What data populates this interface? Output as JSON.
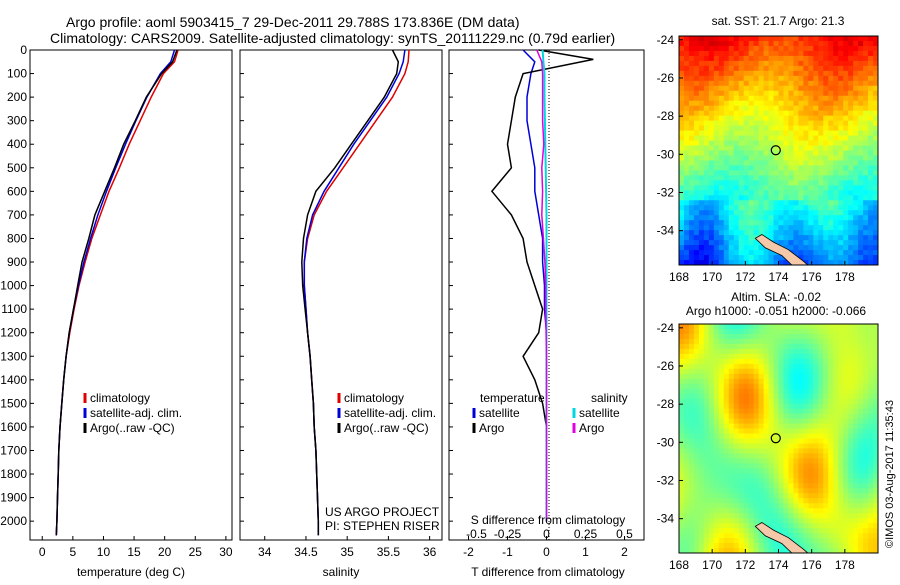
{
  "header": {
    "line1": "Argo profile: aoml 5903415_7 29-Dec-2011 29.788S 173.836E (DM data)",
    "line2": "Climatology: CARS2009. Satellite-adjusted climatology: synTS_20111229.nc (0.79d earlier)"
  },
  "watermark": "©IMOS 03-Aug-2017 11:35:43",
  "colors": {
    "clim": "#e00000",
    "sat": "#0000d8",
    "argo": "#000000",
    "sal_sat": "#00d8e0",
    "sal_argo": "#e000e0"
  },
  "chart_data": [
    {
      "type": "line",
      "name_key": "temperature",
      "xlabel": "temperature (deg C)",
      "ylabel": "",
      "xlim": [
        -2,
        31
      ],
      "ylim": [
        2080,
        0
      ],
      "xticks": [
        0,
        5,
        10,
        15,
        20,
        25,
        30
      ],
      "yticks": [
        0,
        100,
        200,
        300,
        400,
        500,
        600,
        700,
        800,
        900,
        1000,
        1100,
        1200,
        1300,
        1400,
        1500,
        1600,
        1700,
        1800,
        1900,
        2000
      ],
      "legend": [
        "climatology",
        "satellite-adj. clim.",
        "Argo(..raw -QC)"
      ],
      "legend_position": "lower-center",
      "series": [
        {
          "name": "climatology",
          "color": "#e00000",
          "x": [
            22.2,
            21.6,
            19.8,
            17.8,
            16.0,
            14.2,
            12.6,
            10.9,
            9.5,
            8.1,
            7.0,
            6.0,
            5.2,
            4.5,
            3.9,
            3.5,
            3.2,
            2.9,
            2.7,
            2.6,
            2.5,
            2.4,
            2.3
          ],
          "y": [
            0,
            50,
            100,
            200,
            300,
            400,
            500,
            600,
            700,
            800,
            900,
            1000,
            1100,
            1200,
            1300,
            1400,
            1500,
            1600,
            1700,
            1800,
            1900,
            2000,
            2060
          ]
        },
        {
          "name": "satellite-adj. clim.",
          "color": "#0000d8",
          "x": [
            21.6,
            21.0,
            19.3,
            17.1,
            15.3,
            13.6,
            12.0,
            10.5,
            9.1,
            7.9,
            6.8,
            5.9,
            5.1,
            4.4,
            3.9,
            3.5,
            3.2,
            2.9,
            2.7,
            2.6,
            2.5,
            2.4,
            2.3
          ],
          "y": [
            0,
            50,
            100,
            200,
            300,
            400,
            500,
            600,
            700,
            800,
            900,
            1000,
            1100,
            1200,
            1300,
            1400,
            1500,
            1600,
            1700,
            1800,
            1900,
            2000,
            2060
          ]
        },
        {
          "name": "Argo(..raw -QC)",
          "color": "#000000",
          "x": [
            22.0,
            21.3,
            19.5,
            17.0,
            15.2,
            13.3,
            11.8,
            10.2,
            8.6,
            7.6,
            6.5,
            5.8,
            5.1,
            4.4,
            3.9,
            3.5,
            3.2,
            2.9,
            2.7,
            2.6,
            2.5,
            2.4,
            2.3
          ],
          "y": [
            0,
            50,
            100,
            200,
            300,
            400,
            500,
            600,
            700,
            800,
            900,
            1000,
            1100,
            1200,
            1300,
            1400,
            1500,
            1600,
            1700,
            1800,
            1900,
            2000,
            2060
          ]
        }
      ]
    },
    {
      "type": "line",
      "name_key": "salinity",
      "xlabel": "salinity",
      "ylabel": "",
      "xlim": [
        33.7,
        36.15
      ],
      "ylim": [
        2080,
        0
      ],
      "xticks": [
        34,
        34.5,
        35,
        35.5,
        36
      ],
      "yticks": [
        0,
        100,
        200,
        300,
        400,
        500,
        600,
        700,
        800,
        900,
        1000,
        1100,
        1200,
        1300,
        1400,
        1500,
        1600,
        1700,
        1800,
        1900,
        2000
      ],
      "legend": [
        "climatology",
        "satellite-adj. clim.",
        "Argo(..raw -QC)"
      ],
      "legend_position": "lower-right",
      "annotations": [
        "US ARGO PROJECT",
        "PI: STEPHEN RISER"
      ],
      "series": [
        {
          "name": "climatology",
          "color": "#e00000",
          "x": [
            35.75,
            35.74,
            35.7,
            35.55,
            35.35,
            35.15,
            34.95,
            34.75,
            34.6,
            34.52,
            34.48,
            34.48,
            34.5,
            34.52,
            34.55,
            34.57,
            34.59,
            34.6,
            34.62,
            34.63,
            34.64,
            34.65,
            34.65
          ],
          "y": [
            0,
            50,
            100,
            200,
            300,
            400,
            500,
            600,
            700,
            800,
            900,
            1000,
            1100,
            1200,
            1300,
            1400,
            1500,
            1600,
            1700,
            1800,
            1900,
            2000,
            2060
          ]
        },
        {
          "name": "satellite-adj. clim.",
          "color": "#0000d8",
          "x": [
            35.7,
            35.68,
            35.63,
            35.48,
            35.28,
            35.08,
            34.9,
            34.72,
            34.58,
            34.51,
            34.48,
            34.48,
            34.5,
            34.52,
            34.55,
            34.57,
            34.59,
            34.6,
            34.62,
            34.63,
            34.64,
            34.65,
            34.65
          ],
          "y": [
            0,
            50,
            100,
            200,
            300,
            400,
            500,
            600,
            700,
            800,
            900,
            1000,
            1100,
            1200,
            1300,
            1400,
            1500,
            1600,
            1700,
            1800,
            1900,
            2000,
            2060
          ]
        },
        {
          "name": "Argo(..raw -QC)",
          "color": "#000000",
          "x": [
            35.55,
            35.62,
            35.6,
            35.45,
            35.25,
            35.05,
            34.85,
            34.62,
            34.52,
            34.47,
            34.45,
            34.46,
            34.49,
            34.52,
            34.55,
            34.57,
            34.59,
            34.6,
            34.62,
            34.63,
            34.64,
            34.65,
            34.65
          ],
          "y": [
            0,
            50,
            100,
            200,
            300,
            400,
            500,
            600,
            700,
            800,
            900,
            1000,
            1100,
            1200,
            1300,
            1400,
            1500,
            1600,
            1700,
            1800,
            1900,
            2000,
            2060
          ]
        }
      ]
    },
    {
      "type": "line",
      "name_key": "difference",
      "xlabel": "T difference from climatology",
      "xlabel_top": "S difference from climatology",
      "xlim": [
        -2.5,
        2.5
      ],
      "ylim": [
        2080,
        0
      ],
      "xticks": [
        -2,
        -1,
        0,
        1,
        2
      ],
      "xticks_top_labels": [
        "-0.5",
        "-0.25",
        "0",
        "0.25",
        "0.5"
      ],
      "legend_groups": [
        {
          "title": "temperature",
          "items": [
            "satellite",
            "Argo"
          ]
        },
        {
          "title": "salinity",
          "items": [
            "satellite",
            "Argo"
          ]
        }
      ],
      "legend_position": "lower-center",
      "series": [
        {
          "name": "temperature satellite",
          "color": "#0000d8",
          "x": [
            -0.6,
            -0.3,
            -0.4,
            -0.5,
            -0.5,
            -0.4,
            -0.3,
            -0.3,
            -0.2,
            -0.1,
            -0.1,
            -0.05,
            -0.05,
            0,
            0,
            0,
            0,
            0,
            0,
            0,
            0,
            0
          ],
          "y": [
            0,
            50,
            100,
            200,
            300,
            400,
            500,
            600,
            700,
            800,
            900,
            1000,
            1100,
            1200,
            1300,
            1400,
            1500,
            1600,
            1700,
            1800,
            1900,
            2000
          ]
        },
        {
          "name": "temperature Argo",
          "color": "#000000",
          "x": [
            -0.2,
            1.2,
            -0.6,
            -0.8,
            -0.9,
            -1.0,
            -0.9,
            -1.4,
            -0.9,
            -0.6,
            -0.5,
            -0.3,
            -0.1,
            -0.2,
            -0.6,
            -0.3,
            -0.1,
            0,
            0,
            0,
            0,
            0
          ],
          "y": [
            0,
            40,
            100,
            200,
            300,
            400,
            500,
            600,
            700,
            800,
            900,
            1000,
            1100,
            1200,
            1300,
            1400,
            1500,
            1600,
            1700,
            1800,
            1900,
            2000
          ]
        },
        {
          "name": "salinity satellite",
          "color": "#00d8e0",
          "x": [
            -0.1,
            -0.08,
            -0.05,
            -0.05,
            -0.04,
            -0.03,
            -0.02,
            -0.01,
            0,
            0,
            0,
            0,
            0,
            0,
            0,
            0,
            0,
            0,
            0,
            0
          ],
          "y": [
            0,
            50,
            100,
            200,
            300,
            400,
            500,
            600,
            700,
            800,
            900,
            1000,
            1100,
            1200,
            1300,
            1400,
            1500,
            1600,
            1700,
            2000
          ]
        },
        {
          "name": "salinity Argo",
          "color": "#e000e0",
          "x": [
            -0.25,
            -0.12,
            -0.1,
            -0.1,
            -0.1,
            -0.07,
            -0.12,
            -0.1,
            -0.12,
            -0.08,
            -0.04,
            -0.02,
            -0.02,
            -0.01,
            0,
            0,
            0,
            0,
            0,
            0
          ],
          "y": [
            0,
            50,
            100,
            200,
            300,
            400,
            500,
            600,
            700,
            800,
            900,
            1000,
            1100,
            1200,
            1300,
            1400,
            1500,
            1600,
            1700,
            2000
          ]
        }
      ]
    },
    {
      "type": "heatmap",
      "name_key": "sst_map",
      "title": "sat. SST: 21.7  Argo: 21.3",
      "xlim": [
        168,
        180
      ],
      "ylim": [
        -35.8,
        -23.8
      ],
      "xticks": [
        168,
        170,
        172,
        174,
        176,
        178
      ],
      "yticks": [
        -24,
        -26,
        -28,
        -30,
        -32,
        -34
      ],
      "marker": {
        "lon": 173.836,
        "lat": -29.788
      }
    },
    {
      "type": "heatmap",
      "name_key": "sla_map",
      "title": "Altim. SLA: -0.02",
      "subtitle": "Argo h1000: -0.051  h2000: -0.066",
      "xlim": [
        168,
        180
      ],
      "ylim": [
        -35.8,
        -23.8
      ],
      "xticks": [
        168,
        170,
        172,
        174,
        176,
        178
      ],
      "yticks": [
        -24,
        -26,
        -28,
        -30,
        -32,
        -34
      ],
      "marker": {
        "lon": 173.836,
        "lat": -29.788
      }
    }
  ]
}
